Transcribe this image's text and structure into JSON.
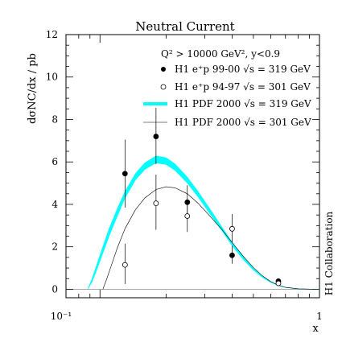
{
  "chart_data": {
    "type": "scatter",
    "title": "Neutral Current",
    "subtitle": "Q² > 10000 GeV², y<0.9",
    "ylabel": "dσNC/dx  / pb",
    "xlabel": "x",
    "x_scale": "log",
    "xlim": [
      0.07,
      1.0
    ],
    "ylim": [
      -0.4,
      12
    ],
    "x_tick_labels": [
      "10⁻¹",
      "1"
    ],
    "y_ticks": [
      0,
      2,
      4,
      6,
      8,
      10,
      12
    ],
    "collaboration": "H1 Collaboration",
    "legend_position": "top-right",
    "legend": [
      {
        "label": "H1 e⁺p 99-00  √s = 319 GeV",
        "marker": "filled-circle"
      },
      {
        "label": "H1 e⁺p 94-97  √s = 301 GeV",
        "marker": "open-circle"
      },
      {
        "label": "H1 PDF 2000 √s = 319 GeV",
        "marker": "cyan-band"
      },
      {
        "label": "H1 PDF 2000 √s = 301 GeV",
        "marker": "thin-line"
      }
    ],
    "series": [
      {
        "name": "H1 e⁺p 99-00  √s = 319 GeV",
        "style": "filled",
        "points": [
          {
            "x": 0.13,
            "y": 5.45,
            "lo": 3.85,
            "hi": 7.05
          },
          {
            "x": 0.18,
            "y": 7.2,
            "lo": 5.9,
            "hi": 8.55
          },
          {
            "x": 0.25,
            "y": 4.1,
            "lo": 3.3,
            "hi": 4.9
          },
          {
            "x": 0.4,
            "y": 1.6,
            "lo": 1.2,
            "hi": 2.05
          },
          {
            "x": 0.65,
            "y": 0.38,
            "lo": 0.28,
            "hi": 0.5
          }
        ]
      },
      {
        "name": "H1 e⁺p 94-97  √s = 301 GeV",
        "style": "open",
        "points": [
          {
            "x": 0.13,
            "y": 1.15,
            "lo": 0.25,
            "hi": 2.15
          },
          {
            "x": 0.18,
            "y": 4.05,
            "lo": 2.8,
            "hi": 5.4
          },
          {
            "x": 0.25,
            "y": 3.45,
            "lo": 2.7,
            "hi": 4.2
          },
          {
            "x": 0.4,
            "y": 2.85,
            "lo": 2.2,
            "hi": 3.55
          },
          {
            "x": 0.65,
            "y": 0.28,
            "lo": 0.18,
            "hi": 0.4
          }
        ]
      },
      {
        "name": "H1 PDF 2000 √s = 319 GeV",
        "style": "band",
        "color": "#00ffff",
        "x": [
          0.088,
          0.092,
          0.097,
          0.103,
          0.11,
          0.12,
          0.13,
          0.145,
          0.16,
          0.18,
          0.2,
          0.22,
          0.25,
          0.28,
          0.32,
          0.36,
          0.4,
          0.45,
          0.5,
          0.55,
          0.6,
          0.65,
          0.7,
          0.8,
          0.9,
          1.0
        ],
        "lo": [
          0.0,
          0.35,
          0.95,
          1.7,
          2.5,
          3.45,
          4.3,
          5.15,
          5.65,
          5.95,
          5.88,
          5.6,
          5.0,
          4.35,
          3.5,
          2.75,
          2.05,
          1.4,
          0.9,
          0.55,
          0.32,
          0.17,
          0.08,
          0.02,
          0.005,
          0.0
        ],
        "hi": [
          0.0,
          0.5,
          1.2,
          2.0,
          2.85,
          3.8,
          4.6,
          5.45,
          5.95,
          6.28,
          6.2,
          5.9,
          5.28,
          4.6,
          3.72,
          2.92,
          2.2,
          1.52,
          0.98,
          0.6,
          0.35,
          0.19,
          0.09,
          0.025,
          0.006,
          0.0
        ]
      },
      {
        "name": "H1 PDF 2000 √s = 301 GeV",
        "style": "line",
        "color": "#000000",
        "x": [
          0.103,
          0.107,
          0.112,
          0.12,
          0.13,
          0.145,
          0.16,
          0.18,
          0.2,
          0.22,
          0.25,
          0.28,
          0.32,
          0.36,
          0.4,
          0.45,
          0.5,
          0.55,
          0.6,
          0.65,
          0.7,
          0.8,
          0.9,
          1.0
        ],
        "y": [
          0.0,
          0.45,
          1.05,
          1.95,
          2.85,
          3.75,
          4.3,
          4.7,
          4.83,
          4.78,
          4.5,
          4.05,
          3.4,
          2.8,
          2.2,
          1.55,
          1.02,
          0.63,
          0.36,
          0.19,
          0.09,
          0.02,
          0.005,
          0.0
        ]
      }
    ]
  }
}
